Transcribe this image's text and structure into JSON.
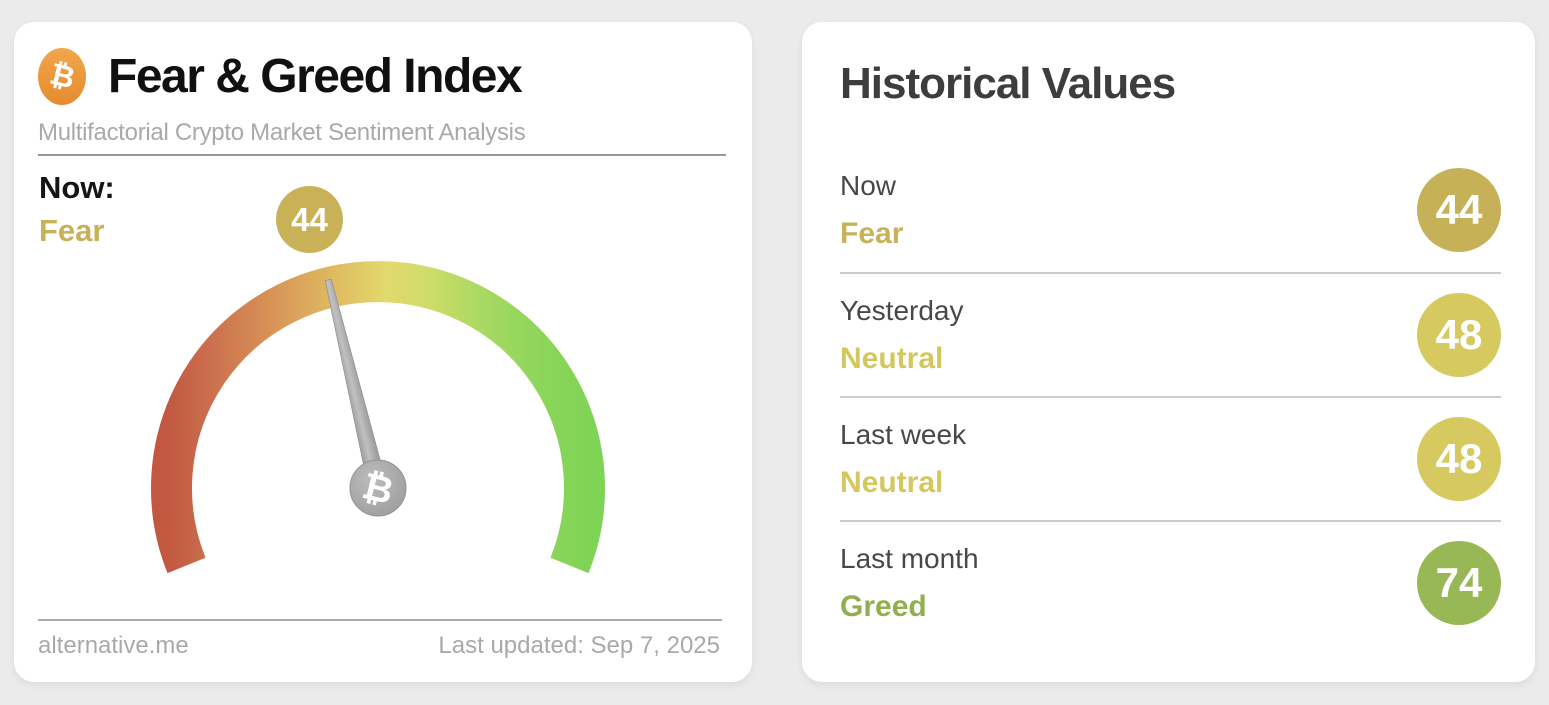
{
  "chart_data": {
    "type": "gauge",
    "title": "Fear & Greed Index",
    "subtitle": "Multifactorial Crypto Market Sentiment Analysis",
    "value": 44,
    "classification": "Fear",
    "range": [
      0,
      100
    ],
    "gauge_span_degrees": 224,
    "scale_gradient": [
      "#c25840",
      "#cb6f4e",
      "#d89457",
      "#dfbc61",
      "#e2d96c",
      "#cfdc69",
      "#a8d962",
      "#8bd55a",
      "#7fd355"
    ],
    "historical": [
      {
        "period": "Now",
        "value": 44,
        "classification": "Fear"
      },
      {
        "period": "Yesterday",
        "value": 48,
        "classification": "Neutral"
      },
      {
        "period": "Last week",
        "value": 48,
        "classification": "Neutral"
      },
      {
        "period": "Last month",
        "value": 74,
        "classification": "Greed"
      }
    ]
  },
  "left_card": {
    "title": "Fear & Greed Index",
    "subtitle": "Multifactorial Crypto Market Sentiment Analysis",
    "icon_glyph": "₿",
    "now_label": "Now:",
    "now_classification": "Fear",
    "now_value": "44",
    "footer_left": "alternative.me",
    "footer_right": "Last updated: Sep 7, 2025"
  },
  "right_card": {
    "title": "Historical Values",
    "rows": [
      {
        "label": "Now",
        "classification": "Fear",
        "value": "44",
        "text_color": "#c9b158",
        "badge_color": "#c6b159"
      },
      {
        "label": "Yesterday",
        "classification": "Neutral",
        "value": "48",
        "text_color": "#d4c75e",
        "badge_color": "#d5c960"
      },
      {
        "label": "Last week",
        "classification": "Neutral",
        "value": "48",
        "text_color": "#d4c75e",
        "badge_color": "#d5c960"
      },
      {
        "label": "Last month",
        "classification": "Greed",
        "value": "74",
        "text_color": "#8fb04c",
        "badge_color": "#97b854"
      }
    ]
  },
  "colors": {
    "page_bg": "#ebebeb",
    "card_bg": "#ffffff",
    "fear_gold": "#c9b158",
    "neutral_yellow": "#d4c75e",
    "greed_green": "#8fb04c",
    "bitcoin_orange": "#ea963c",
    "needle_gray": "#9e9e9e",
    "title_black": "#101010",
    "muted_gray": "#a9a9a9"
  }
}
